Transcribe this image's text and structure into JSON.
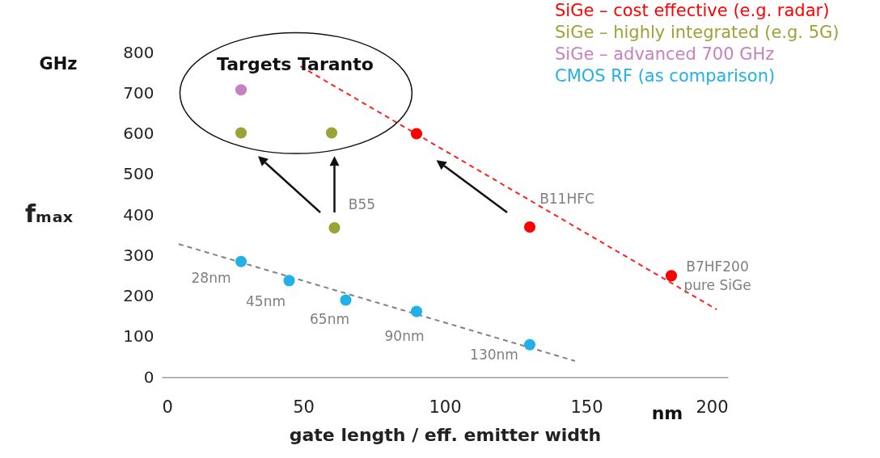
{
  "chart_data": {
    "type": "scatter",
    "xlabel": "gate length / eff. emitter width",
    "ylabel": "fₘₐₓ",
    "xlim": [
      0,
      200
    ],
    "xticks": [
      0,
      50,
      100,
      150,
      200
    ],
    "ylim": [
      0,
      800
    ],
    "yticks": [
      0,
      100,
      200,
      300,
      400,
      500,
      600,
      700,
      800
    ],
    "grid": false,
    "legend": "top right",
    "marker": "circle",
    "series": [
      {
        "name": "SiGe – cost effective (e.g. radar)",
        "color": "#ff0000",
        "x": [
          90,
          130,
          180
        ],
        "values": [
          600,
          370,
          250
        ]
      },
      {
        "name": "SiGe – highly integrated (e.g. 5G)",
        "color": "#9aa336",
        "x": [
          28,
          60,
          61
        ],
        "values": [
          602,
          602,
          368
        ]
      },
      {
        "name": "SiGe – advanced 700 GHz",
        "color": "#c880c0",
        "x": [
          28
        ],
        "values": [
          708
        ]
      },
      {
        "name": "CMOS RF (as comparison)",
        "color": "#22b0e8",
        "x": [
          28,
          45,
          65,
          90,
          130
        ],
        "values": [
          285,
          238,
          190,
          162,
          80
        ]
      },
      {
        "type": "line",
        "marker": "none",
        "color": "#808080",
        "line_style": "dashed",
        "x": [
          6,
          146
        ],
        "values": [
          328,
          40
        ]
      },
      {
        "type": "line",
        "marker": "none",
        "color": "#ff2020",
        "line_style": "dashed",
        "x": [
          49,
          196
        ],
        "values": [
          766,
          167
        ]
      }
    ],
    "annotations": [
      "GHz",
      "nm",
      "Targets Taranto",
      {
        "text": "28nm",
        "x": 28,
        "y": 285
      },
      {
        "text": "45nm",
        "x": 45,
        "y": 238
      },
      {
        "text": "65nm",
        "x": 65,
        "y": 190
      },
      {
        "text": "90nm",
        "x": 90,
        "y": 162
      },
      {
        "text": "130nm",
        "x": 130,
        "y": 80
      },
      {
        "text": "B55",
        "x": 61,
        "y": 368
      },
      {
        "text": "B11HFC",
        "x": 130,
        "y": 370
      },
      {
        "text": "B7HF200\npure SiGe",
        "x": 180,
        "y": 250
      }
    ]
  }
}
